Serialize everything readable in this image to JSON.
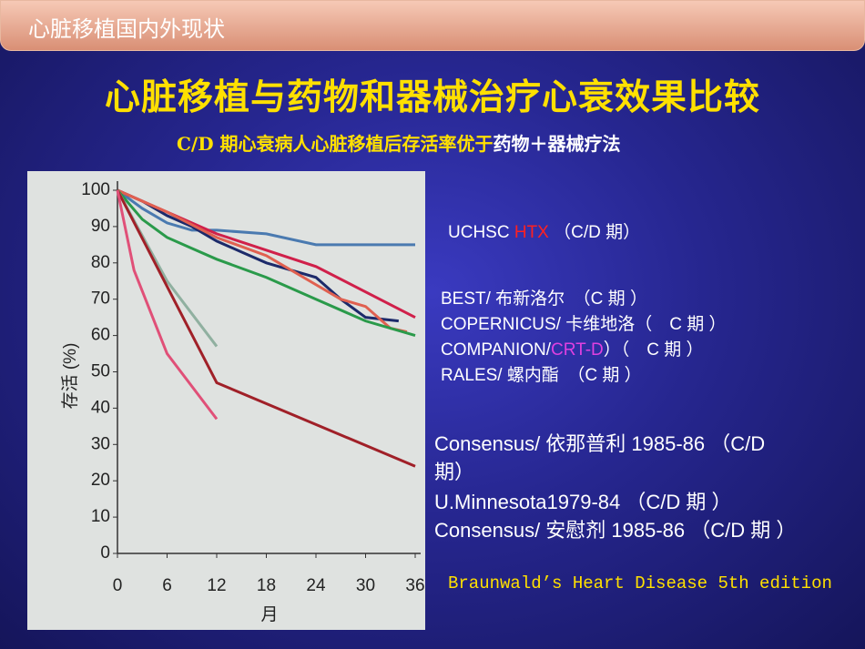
{
  "header": {
    "title": "心脏移植国内外现状"
  },
  "title": "心脏移植与药物和器械治疗心衰效果比较",
  "subtitle": [
    "C/D 期心衰病人心脏移植后存活率优于",
    "药物＋器械疗法"
  ],
  "chart_data": {
    "type": "line",
    "y_label": "存活 (%)",
    "x_label": "月",
    "xlim": [
      0,
      36
    ],
    "xticks": [
      0,
      6,
      12,
      18,
      24,
      30,
      36
    ],
    "ylim": [
      0,
      100
    ],
    "yticks": [
      0,
      10,
      20,
      30,
      40,
      50,
      60,
      70,
      80,
      90,
      100
    ],
    "series": [
      {
        "color": "#4a7ab0",
        "x": [
          0,
          3,
          6,
          9,
          12,
          18,
          24,
          30,
          36
        ],
        "values": [
          100,
          95,
          91,
          89,
          89,
          88,
          85,
          85,
          85
        ]
      },
      {
        "color": "#1c2a6a",
        "x": [
          0,
          3,
          6,
          9,
          12,
          15,
          18,
          21,
          24,
          27,
          30,
          34
        ],
        "values": [
          100,
          97,
          93,
          90,
          86,
          83,
          80,
          78,
          76,
          70,
          65,
          64
        ]
      },
      {
        "color": "#d0204a",
        "x": [
          0,
          12,
          24,
          36
        ],
        "values": [
          100,
          88,
          79,
          65
        ]
      },
      {
        "color": "#e06050",
        "x": [
          0,
          6,
          12,
          18,
          24,
          27,
          30,
          33,
          35
        ],
        "values": [
          100,
          94,
          87,
          82,
          74,
          70,
          68,
          62,
          61
        ]
      },
      {
        "color": "#2a9a4a",
        "x": [
          0,
          3,
          6,
          9,
          12,
          18,
          24,
          30,
          36
        ],
        "values": [
          100,
          92,
          87,
          84,
          81,
          76,
          70,
          64,
          60
        ]
      },
      {
        "color": "#90b0a0",
        "x": [
          0,
          6,
          12
        ],
        "values": [
          100,
          75,
          57
        ]
      },
      {
        "color": "#a02028",
        "x": [
          0,
          12,
          36
        ],
        "values": [
          100,
          47,
          24
        ]
      },
      {
        "color": "#e05078",
        "x": [
          0,
          2,
          6,
          12
        ],
        "values": [
          100,
          78,
          55,
          37
        ]
      }
    ]
  },
  "annotations": [
    [
      "UCHSC ",
      "HTX",
      " （C/D 期）"
    ],
    [
      "BEST/ 布新洛尔　（C 期 ）"
    ],
    [
      "COPERNICUS/ 卡维地洛（　C 期 ）"
    ],
    [
      "COMPANION/",
      "CRT-D",
      "）（　C 期 ）"
    ],
    [
      "RALES/ 螺内酯　（C 期 ）"
    ],
    [
      "Consensus/ 依那普利 1985-86 （C/D"
    ],
    [
      "期）"
    ],
    [
      "U.Minnesota1979-84 （C/D 期 ）"
    ],
    [
      "Consensus/ 安慰剂 1985-86 （C/D 期 ）"
    ]
  ],
  "citation": "Braunwald’s Heart Disease 5th edition"
}
